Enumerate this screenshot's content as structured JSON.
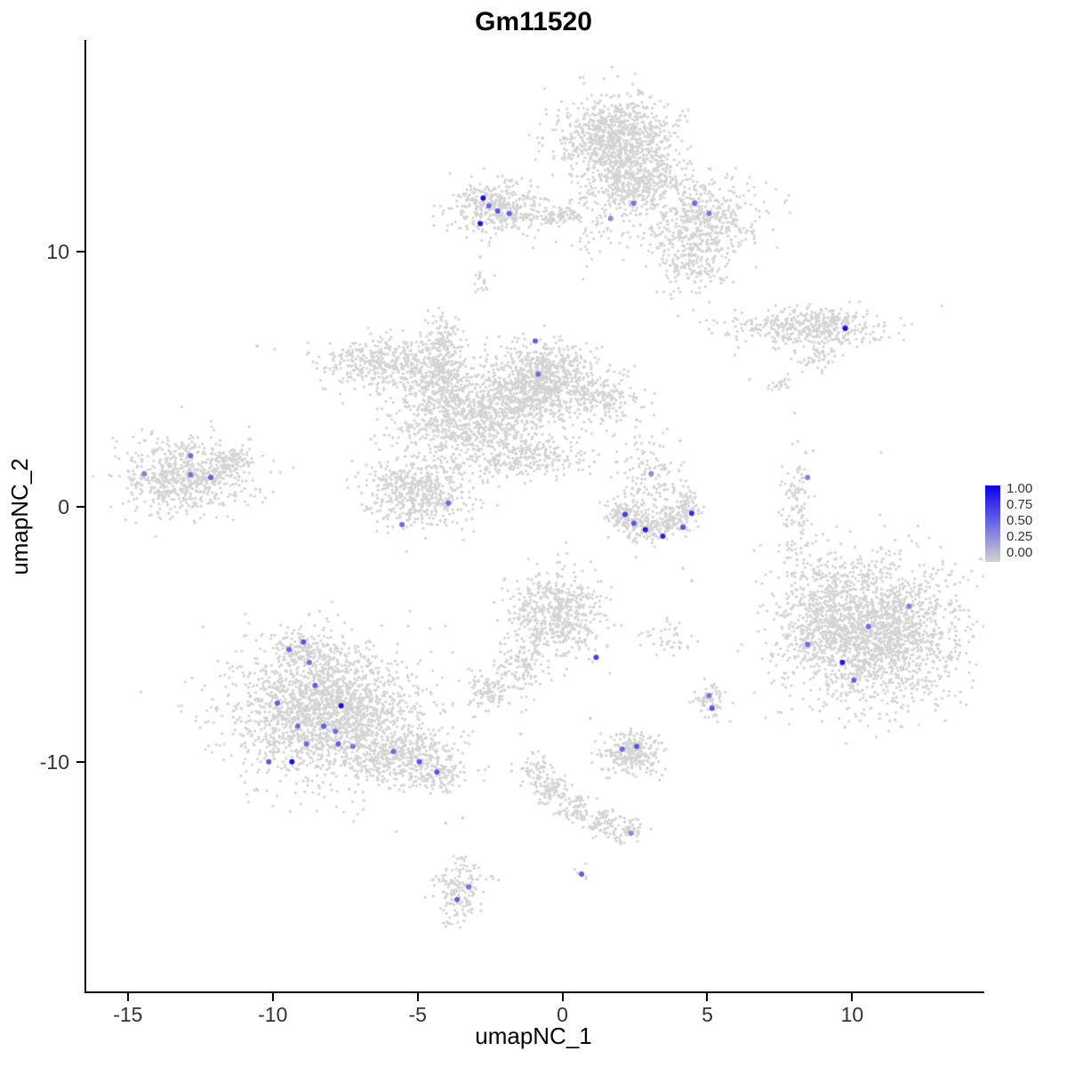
{
  "title": "Gm11520",
  "axes": {
    "x": {
      "label": "umapNC_1",
      "min": -16.5,
      "max": 14.5,
      "ticks": [
        -15,
        -10,
        -5,
        0,
        5,
        10
      ]
    },
    "y": {
      "label": "umapNC_2",
      "min": -19.0,
      "max": 18.3,
      "ticks": [
        10,
        0,
        -10
      ]
    }
  },
  "legend": {
    "labels": [
      "1.00",
      "0.75",
      "0.50",
      "0.25",
      "0.00"
    ],
    "high_color": "#0A00EE",
    "low_color": "#D3D3D3"
  },
  "chart_data": {
    "type": "scatter",
    "title": "Gm11520",
    "xlabel": "umapNC_1",
    "ylabel": "umapNC_2",
    "xlim": [
      -16.5,
      14.5
    ],
    "ylim": [
      -19.0,
      18.3
    ],
    "grid": false,
    "legend_position": "right",
    "point_color_low": "#D3D3D3",
    "point_color_high": "#0A00EE",
    "gray_point_radius": 1.6,
    "highlight_point_radius": 3.0,
    "background_clusters": [
      {
        "name": "top-center-main",
        "blobs": [
          {
            "x": 1.8,
            "y": 14.4,
            "sx": 0.95,
            "sy": 0.85,
            "n": 950
          },
          {
            "x": 2.1,
            "y": 12.5,
            "sx": 0.5,
            "sy": 0.55,
            "n": 160
          },
          {
            "x": 4.7,
            "y": 11.2,
            "sx": 1.0,
            "sy": 0.85,
            "n": 520
          },
          {
            "x": 4.4,
            "y": 9.5,
            "sx": 0.6,
            "sy": 0.6,
            "n": 150
          },
          {
            "x": 0.9,
            "y": 11.2,
            "sx": 0.6,
            "sy": 0.7,
            "n": 90
          },
          {
            "x": 3.1,
            "y": 12.9,
            "sx": 0.7,
            "sy": 0.6,
            "n": 180
          }
        ]
      },
      {
        "name": "top-left-small",
        "blobs": [
          {
            "x": -2.3,
            "y": 11.7,
            "sx": 0.8,
            "sy": 0.5,
            "n": 380
          },
          {
            "x": -0.5,
            "y": 11.4,
            "sx": 0.6,
            "sy": 0.18,
            "n": 70
          },
          {
            "x": -2.8,
            "y": 8.8,
            "sx": 0.18,
            "sy": 0.25,
            "n": 18
          }
        ]
      },
      {
        "name": "right-elongated",
        "blobs": [
          {
            "x": 8.2,
            "y": 7.0,
            "sx": 1.5,
            "sy": 0.38,
            "n": 330
          },
          {
            "x": 9.3,
            "y": 7.0,
            "sx": 0.6,
            "sy": 0.45,
            "n": 120
          },
          {
            "x": 8.7,
            "y": 5.9,
            "sx": 0.4,
            "sy": 0.3,
            "n": 45
          },
          {
            "x": 7.4,
            "y": 4.8,
            "sx": 0.3,
            "sy": 0.2,
            "n": 18
          }
        ]
      },
      {
        "name": "central-large",
        "blobs": [
          {
            "x": -0.8,
            "y": 4.9,
            "sx": 0.95,
            "sy": 0.75,
            "n": 850
          },
          {
            "x": -3.3,
            "y": 3.5,
            "sx": 1.3,
            "sy": 0.85,
            "n": 950
          },
          {
            "x": -6.2,
            "y": 5.6,
            "sx": 1.1,
            "sy": 0.5,
            "n": 420
          },
          {
            "x": -4.3,
            "y": 5.1,
            "sx": 0.55,
            "sy": 0.55,
            "n": 220
          },
          {
            "x": -4.2,
            "y": 6.6,
            "sx": 0.3,
            "sy": 0.5,
            "n": 110
          },
          {
            "x": -1.3,
            "y": 1.9,
            "sx": 1.2,
            "sy": 0.4,
            "n": 260
          },
          {
            "x": -5.1,
            "y": 0.6,
            "sx": 0.95,
            "sy": 0.65,
            "n": 520
          },
          {
            "x": 1.4,
            "y": 4.3,
            "sx": 0.6,
            "sy": 0.45,
            "n": 160
          }
        ]
      },
      {
        "name": "left",
        "blobs": [
          {
            "x": -13.1,
            "y": 1.2,
            "sx": 1.1,
            "sy": 0.75,
            "n": 650
          },
          {
            "x": -11.5,
            "y": 1.8,
            "sx": 0.35,
            "sy": 0.3,
            "n": 90
          }
        ]
      },
      {
        "name": "center-right-arc",
        "blobs": [
          {
            "x": 2.1,
            "y": -0.3,
            "sx": 0.3,
            "sy": 0.35,
            "n": 120
          },
          {
            "x": 2.9,
            "y": -0.8,
            "sx": 0.35,
            "sy": 0.3,
            "n": 130
          },
          {
            "x": 3.8,
            "y": -0.5,
            "sx": 0.35,
            "sy": 0.3,
            "n": 100
          },
          {
            "x": 4.2,
            "y": 0.1,
            "sx": 0.25,
            "sy": 0.3,
            "n": 60
          },
          {
            "x": 3.1,
            "y": 1.1,
            "sx": 0.55,
            "sy": 0.6,
            "n": 90
          },
          {
            "x": 2.7,
            "y": 2.2,
            "sx": 0.4,
            "sy": 0.5,
            "n": 35
          }
        ]
      },
      {
        "name": "right-sparse-strip",
        "blobs": [
          {
            "x": 8.0,
            "y": 0.3,
            "sx": 0.28,
            "sy": 0.95,
            "n": 90
          },
          {
            "x": 7.9,
            "y": -1.8,
            "sx": 0.3,
            "sy": 0.5,
            "n": 25
          }
        ]
      },
      {
        "name": "right-large",
        "blobs": [
          {
            "x": 10.7,
            "y": -4.9,
            "sx": 1.5,
            "sy": 1.4,
            "n": 2000
          },
          {
            "x": 8.6,
            "y": -4.4,
            "sx": 0.7,
            "sy": 1.1,
            "n": 180
          },
          {
            "x": 9.2,
            "y": -2.6,
            "sx": 0.5,
            "sy": 0.45,
            "n": 45
          }
        ]
      },
      {
        "name": "center-mid",
        "blobs": [
          {
            "x": -0.2,
            "y": -4.2,
            "sx": 0.8,
            "sy": 0.85,
            "n": 550
          },
          {
            "x": -1.6,
            "y": -6.3,
            "sx": 0.45,
            "sy": 0.6,
            "n": 120
          },
          {
            "x": -2.7,
            "y": -7.2,
            "sx": 0.35,
            "sy": 0.35,
            "n": 90
          }
        ]
      },
      {
        "name": "bottom-left-large",
        "blobs": [
          {
            "x": -8.2,
            "y": -8.0,
            "sx": 1.6,
            "sy": 1.3,
            "n": 2000
          },
          {
            "x": -5.5,
            "y": -9.8,
            "sx": 1.0,
            "sy": 0.55,
            "n": 420
          },
          {
            "x": -4.3,
            "y": -10.5,
            "sx": 0.4,
            "sy": 0.35,
            "n": 90
          },
          {
            "x": -9.0,
            "y": -5.6,
            "sx": 0.6,
            "sy": 0.4,
            "n": 120
          }
        ]
      },
      {
        "name": "small-right-dots",
        "blobs": [
          {
            "x": 5.0,
            "y": -7.6,
            "sx": 0.3,
            "sy": 0.4,
            "n": 60
          }
        ]
      },
      {
        "name": "small-center-low",
        "blobs": [
          {
            "x": 2.3,
            "y": -9.6,
            "sx": 0.55,
            "sy": 0.42,
            "n": 260
          }
        ]
      },
      {
        "name": "bottom-diagonal",
        "blobs": [
          {
            "x": -1.0,
            "y": -10.3,
            "sx": 0.3,
            "sy": 0.3,
            "n": 55
          },
          {
            "x": -0.4,
            "y": -11.1,
            "sx": 0.3,
            "sy": 0.3,
            "n": 75
          },
          {
            "x": 0.4,
            "y": -11.9,
            "sx": 0.3,
            "sy": 0.28,
            "n": 75
          },
          {
            "x": 1.3,
            "y": -12.4,
            "sx": 0.3,
            "sy": 0.25,
            "n": 70
          },
          {
            "x": 2.1,
            "y": -12.7,
            "sx": 0.3,
            "sy": 0.25,
            "n": 55
          }
        ]
      },
      {
        "name": "bottom-small",
        "blobs": [
          {
            "x": -3.6,
            "y": -15.0,
            "sx": 0.38,
            "sy": 0.6,
            "n": 160
          },
          {
            "x": -4.0,
            "y": -16.3,
            "sx": 0.15,
            "sy": 0.15,
            "n": 8
          },
          {
            "x": 0.6,
            "y": -14.5,
            "sx": 0.15,
            "sy": 0.15,
            "n": 10
          }
        ]
      },
      {
        "name": "sparse-mid-right",
        "blobs": [
          {
            "x": 3.6,
            "y": -5.1,
            "sx": 0.5,
            "sy": 0.35,
            "n": 40
          }
        ]
      }
    ],
    "scatter_singles": [
      [
        -10.6,
        6.3
      ],
      [
        6.4,
        5.0
      ],
      [
        7.5,
        4.8
      ],
      [
        4.1,
        -2.4
      ],
      [
        4.4,
        -2.9
      ],
      [
        7.7,
        -2.0
      ],
      [
        7.9,
        -2.6
      ],
      [
        -4.1,
        -12.4
      ],
      [
        -3.5,
        -12.2
      ],
      [
        -1.9,
        -7.7
      ],
      [
        -1.5,
        -8.9
      ],
      [
        0.9,
        -8.3
      ],
      [
        5.5,
        8.9
      ],
      [
        -2.9,
        9.8
      ],
      [
        4.0,
        2.6
      ],
      [
        8.6,
        2.2
      ],
      [
        2.5,
        3.4
      ]
    ],
    "highlighted_cells": [
      [
        -2.8,
        12.1,
        0.95
      ],
      [
        -2.9,
        11.1,
        0.9
      ],
      [
        -2.3,
        11.6,
        0.6
      ],
      [
        -1.9,
        11.5,
        0.55
      ],
      [
        -2.6,
        11.8,
        0.5
      ],
      [
        1.6,
        11.3,
        0.35
      ],
      [
        2.4,
        11.9,
        0.45
      ],
      [
        4.5,
        11.9,
        0.5
      ],
      [
        5.0,
        11.5,
        0.45
      ],
      [
        9.7,
        7.0,
        0.95
      ],
      [
        -1.0,
        6.5,
        0.55
      ],
      [
        -0.9,
        5.2,
        0.5
      ],
      [
        -12.9,
        2.0,
        0.5
      ],
      [
        -12.9,
        1.25,
        0.5
      ],
      [
        -12.2,
        1.15,
        0.55
      ],
      [
        -14.5,
        1.3,
        0.4
      ],
      [
        -4.0,
        0.15,
        0.5
      ],
      [
        -5.6,
        -0.7,
        0.5
      ],
      [
        2.1,
        -0.3,
        0.7
      ],
      [
        2.4,
        -0.65,
        0.6
      ],
      [
        2.8,
        -0.9,
        0.9
      ],
      [
        3.4,
        -1.15,
        0.85
      ],
      [
        4.1,
        -0.8,
        0.6
      ],
      [
        4.4,
        -0.25,
        0.8
      ],
      [
        3.0,
        1.3,
        0.35
      ],
      [
        8.4,
        1.15,
        0.4
      ],
      [
        11.9,
        -3.9,
        0.4
      ],
      [
        10.5,
        -4.7,
        0.5
      ],
      [
        9.6,
        -6.1,
        0.9
      ],
      [
        10.0,
        -6.8,
        0.55
      ],
      [
        8.4,
        -5.4,
        0.5
      ],
      [
        1.1,
        -5.9,
        0.7
      ],
      [
        -9.0,
        -5.3,
        0.6
      ],
      [
        -9.5,
        -5.6,
        0.5
      ],
      [
        -8.8,
        -6.1,
        0.5
      ],
      [
        -9.9,
        -7.7,
        0.55
      ],
      [
        -8.6,
        -7.0,
        0.55
      ],
      [
        -7.7,
        -7.8,
        0.95
      ],
      [
        -8.3,
        -8.6,
        0.55
      ],
      [
        -7.9,
        -8.8,
        0.5
      ],
      [
        -9.2,
        -8.6,
        0.5
      ],
      [
        -8.9,
        -9.3,
        0.5
      ],
      [
        -7.8,
        -9.3,
        0.55
      ],
      [
        -10.2,
        -10.0,
        0.6
      ],
      [
        -9.4,
        -10.0,
        0.95
      ],
      [
        -5.9,
        -9.6,
        0.5
      ],
      [
        -5.0,
        -10.0,
        0.6
      ],
      [
        -4.4,
        -10.4,
        0.6
      ],
      [
        -7.3,
        -9.4,
        0.45
      ],
      [
        5.0,
        -7.4,
        0.45
      ],
      [
        5.1,
        -7.9,
        0.6
      ],
      [
        2.5,
        -9.4,
        0.6
      ],
      [
        2.0,
        -9.5,
        0.5
      ],
      [
        2.3,
        -12.8,
        0.35
      ],
      [
        0.6,
        -14.4,
        0.55
      ],
      [
        -3.3,
        -14.9,
        0.45
      ],
      [
        -3.7,
        -15.4,
        0.55
      ]
    ]
  }
}
